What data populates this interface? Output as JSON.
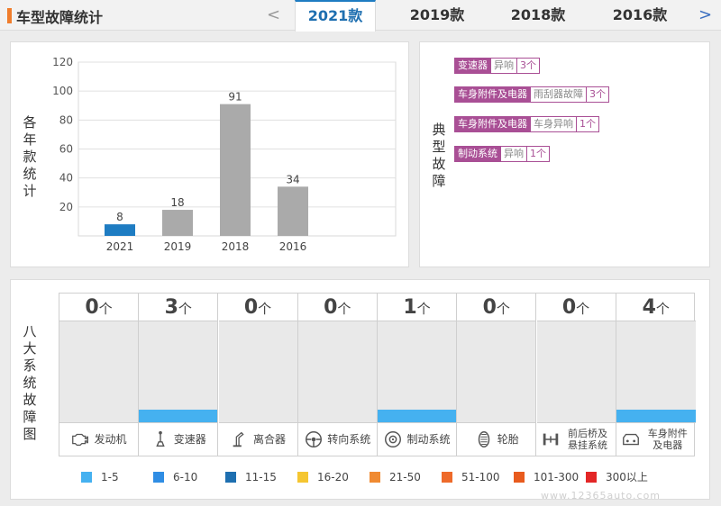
{
  "header": {
    "title": "车型故障统计",
    "prev_arrow": "<",
    "next_arrow": ">",
    "tabs": [
      {
        "label": "2021款",
        "active": true
      },
      {
        "label": "2019款",
        "active": false
      },
      {
        "label": "2018款",
        "active": false
      },
      {
        "label": "2016款",
        "active": false
      }
    ]
  },
  "chart_panel": {
    "ylabel": "各年款统计"
  },
  "chart_data": {
    "type": "bar",
    "categories": [
      "2021",
      "2019",
      "2018",
      "2016"
    ],
    "values": [
      8,
      18,
      91,
      34
    ],
    "colors": [
      "#1e7cc2",
      "#aaaaaa",
      "#aaaaaa",
      "#aaaaaa"
    ],
    "yticks": [
      20,
      40,
      60,
      80,
      100,
      120
    ],
    "ylim": [
      0,
      120
    ],
    "grid": true
  },
  "faults_panel": {
    "label": "典型故障",
    "items": [
      {
        "system": "变速器",
        "part": "异响",
        "count": "3个"
      },
      {
        "system": "车身附件及电器",
        "part": "雨刮器故障",
        "count": "3个"
      },
      {
        "system": "车身附件及电器",
        "part": "车身异响",
        "count": "1个"
      },
      {
        "system": "制动系统",
        "part": "异响",
        "count": "1个"
      }
    ]
  },
  "systems_panel": {
    "label": "八大系统故障图",
    "unit": "个",
    "systems": [
      {
        "count": "0",
        "name": "发动机",
        "icon": "engine-icon",
        "level": 0
      },
      {
        "count": "3",
        "name": "变速器",
        "icon": "gear-shift-icon",
        "level": 1
      },
      {
        "count": "0",
        "name": "离合器",
        "icon": "clutch-icon",
        "level": 0
      },
      {
        "count": "0",
        "name": "转向系统",
        "icon": "steering-wheel-icon",
        "level": 0
      },
      {
        "count": "1",
        "name": "制动系统",
        "icon": "brake-disc-icon",
        "level": 1
      },
      {
        "count": "0",
        "name": "轮胎",
        "icon": "tire-icon",
        "level": 0
      },
      {
        "count": "0",
        "name": "前后桥及悬挂系统",
        "icon": "suspension-icon",
        "level": 0
      },
      {
        "count": "4",
        "name": "车身附件及电器",
        "icon": "car-accessory-icon",
        "level": 1
      }
    ],
    "legend": [
      {
        "label": "1-5",
        "color": "#45b1f0"
      },
      {
        "label": "6-10",
        "color": "#2f8de4"
      },
      {
        "label": "11-15",
        "color": "#1e6fb0"
      },
      {
        "label": "16-20",
        "color": "#f5c631"
      },
      {
        "label": "21-50",
        "color": "#f08a31"
      },
      {
        "label": "51-100",
        "color": "#ee6a2a"
      },
      {
        "label": "101-300",
        "color": "#e85b1e"
      },
      {
        "label": "300以上",
        "color": "#e32626"
      }
    ]
  },
  "watermark": "www.12365auto.com"
}
